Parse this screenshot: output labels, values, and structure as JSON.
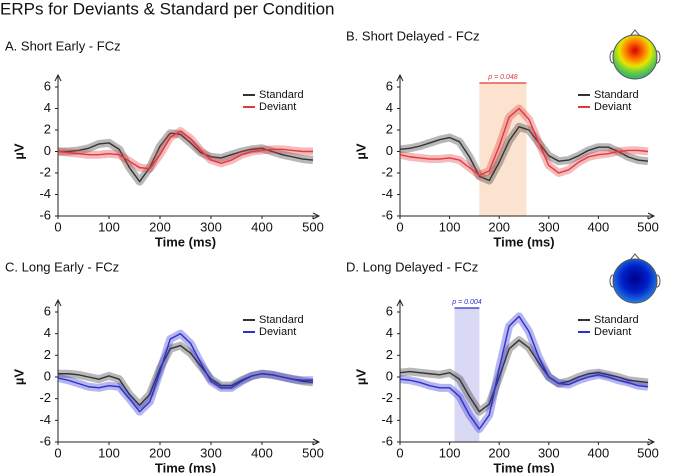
{
  "title": "ERPs for Deviants & Standard per Condition",
  "chart_data": [
    {
      "type": "line",
      "title": "A. Short Early - FCz",
      "xlabel": "Time (ms)",
      "ylabel": "µV",
      "x": [
        0,
        20,
        40,
        60,
        80,
        100,
        120,
        140,
        160,
        180,
        200,
        220,
        240,
        260,
        280,
        300,
        320,
        340,
        360,
        380,
        400,
        420,
        440,
        460,
        480,
        500
      ],
      "series": [
        {
          "name": "Standard",
          "color": "#333333",
          "values": [
            0,
            0,
            0.1,
            0.3,
            0.7,
            0.8,
            0.2,
            -1.5,
            -2.8,
            -1.5,
            0.5,
            1.7,
            1.6,
            0.8,
            -0.1,
            -0.5,
            -0.6,
            -0.3,
            0,
            0.2,
            0.3,
            0,
            -0.3,
            -0.5,
            -0.7,
            -0.8
          ]
        },
        {
          "name": "Deviant",
          "color": "#e0393e",
          "values": [
            0,
            -0.1,
            -0.2,
            -0.3,
            -0.3,
            -0.2,
            -0.3,
            -0.9,
            -1.5,
            -1.6,
            -0.3,
            1.3,
            1.9,
            1.2,
            0.1,
            -0.8,
            -1.1,
            -0.8,
            -0.3,
            0,
            0.1,
            0.2,
            0.2,
            0.1,
            0,
            0
          ]
        }
      ],
      "xlim": [
        0,
        500
      ],
      "xticks": [
        0,
        100,
        200,
        300,
        400,
        500
      ],
      "ylim": [
        -6,
        6
      ],
      "yticks": [
        -6,
        -4,
        -2,
        0,
        2,
        4,
        6
      ],
      "legend": "upper right"
    },
    {
      "type": "line",
      "title": "B. Short Delayed - FCz",
      "xlabel": "Time (ms)",
      "ylabel": "µV",
      "x": [
        0,
        20,
        40,
        60,
        80,
        100,
        120,
        140,
        160,
        180,
        200,
        220,
        240,
        260,
        280,
        300,
        320,
        340,
        360,
        380,
        400,
        420,
        440,
        460,
        480,
        500
      ],
      "series": [
        {
          "name": "Standard",
          "color": "#333333",
          "values": [
            0.2,
            0.3,
            0.5,
            0.8,
            1.1,
            1.3,
            0.9,
            -0.5,
            -2.3,
            -2.7,
            -1,
            1,
            2.3,
            2,
            0.8,
            -0.4,
            -0.9,
            -0.8,
            -0.4,
            0.1,
            0.4,
            0.4,
            0,
            -0.5,
            -0.8,
            -0.9
          ]
        },
        {
          "name": "Deviant",
          "color": "#e0393e",
          "values": [
            -0.3,
            -0.5,
            -0.6,
            -0.7,
            -0.7,
            -0.6,
            -0.8,
            -1.5,
            -2.2,
            -1.8,
            0.5,
            3.2,
            4,
            3,
            0.8,
            -1.3,
            -2,
            -1.7,
            -1,
            -0.5,
            -0.3,
            -0.2,
            0,
            0.1,
            0.1,
            0
          ]
        }
      ],
      "xlim": [
        0,
        500
      ],
      "xticks": [
        0,
        100,
        200,
        300,
        400,
        500
      ],
      "ylim": [
        -6,
        6
      ],
      "yticks": [
        -6,
        -4,
        -2,
        0,
        2,
        4,
        6
      ],
      "legend": "upper right",
      "highlight": {
        "xrange": [
          160,
          255
        ],
        "label": "p = 0.048",
        "color": "#fbe3d0"
      }
    },
    {
      "type": "line",
      "title": "C. Long Early - FCz",
      "xlabel": "Time (ms)",
      "ylabel": "µV",
      "x": [
        0,
        20,
        40,
        60,
        80,
        100,
        120,
        140,
        160,
        180,
        200,
        220,
        240,
        260,
        280,
        300,
        320,
        340,
        360,
        380,
        400,
        420,
        440,
        460,
        480,
        500
      ],
      "series": [
        {
          "name": "Standard",
          "color": "#333333",
          "values": [
            0.3,
            0.3,
            0.2,
            0,
            -0.2,
            0.1,
            -0.2,
            -1.6,
            -2.6,
            -1.6,
            0.8,
            2.6,
            2.9,
            2.2,
            1,
            -0.2,
            -0.8,
            -0.8,
            -0.3,
            0.1,
            0.3,
            0.2,
            0,
            -0.2,
            -0.4,
            -0.5
          ]
        },
        {
          "name": "Deviant",
          "color": "#2f2fd0",
          "values": [
            -0.1,
            -0.3,
            -0.6,
            -0.9,
            -1,
            -0.8,
            -0.9,
            -2,
            -3.2,
            -2.3,
            0.5,
            3.5,
            4,
            3.1,
            1.3,
            -0.4,
            -1,
            -1,
            -0.4,
            0.1,
            0.3,
            0.2,
            0,
            -0.2,
            -0.3,
            -0.3
          ]
        }
      ],
      "xlim": [
        0,
        500
      ],
      "xticks": [
        0,
        100,
        200,
        300,
        400,
        500
      ],
      "ylim": [
        -6,
        6
      ],
      "yticks": [
        -6,
        -4,
        -2,
        0,
        2,
        4,
        6
      ],
      "legend": "upper right"
    },
    {
      "type": "line",
      "title": "D. Long Delayed - FCz",
      "xlabel": "Time (ms)",
      "ylabel": "µV",
      "x": [
        0,
        20,
        40,
        60,
        80,
        100,
        120,
        140,
        160,
        180,
        200,
        220,
        240,
        260,
        280,
        300,
        320,
        340,
        360,
        380,
        400,
        420,
        440,
        460,
        480,
        500
      ],
      "series": [
        {
          "name": "Standard",
          "color": "#333333",
          "values": [
            0.4,
            0.5,
            0.4,
            0.3,
            0.2,
            0.4,
            -0.2,
            -1.8,
            -3.2,
            -2.5,
            0,
            2.6,
            3.4,
            2.7,
            1.3,
            0,
            -0.6,
            -0.4,
            0,
            0.3,
            0.4,
            0.2,
            0,
            -0.3,
            -0.4,
            -0.5
          ]
        },
        {
          "name": "Deviant",
          "color": "#2f2fd0",
          "values": [
            -0.2,
            -0.3,
            -0.5,
            -0.8,
            -1,
            -1,
            -1.8,
            -3.5,
            -4.8,
            -3.5,
            0.8,
            4.7,
            5.6,
            4.2,
            1.8,
            0,
            -0.6,
            -0.7,
            -0.3,
            0,
            0.2,
            0,
            -0.3,
            -0.5,
            -0.8,
            -0.9
          ]
        }
      ],
      "xlim": [
        0,
        500
      ],
      "xticks": [
        0,
        100,
        200,
        300,
        400,
        500
      ],
      "ylim": [
        -6,
        6
      ],
      "yticks": [
        -6,
        -4,
        -2,
        0,
        2,
        4,
        6
      ],
      "legend": "upper right",
      "highlight": {
        "xrange": [
          110,
          160
        ],
        "label": "p = 0.004",
        "color": "#d9d9f5"
      }
    }
  ]
}
